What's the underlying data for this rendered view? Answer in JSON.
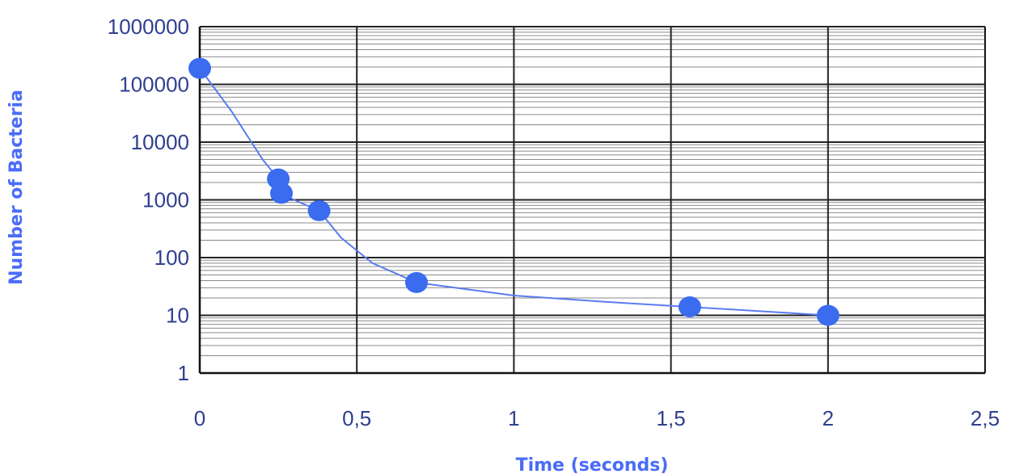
{
  "chart_data": {
    "type": "scatter",
    "title": "",
    "xlabel": "Time (seconds)",
    "ylabel": "Number of Bacteria",
    "xlim": [
      0,
      2.5
    ],
    "ylim": [
      1,
      1000000
    ],
    "yscale": "log",
    "grid": true,
    "x_ticks": [
      "0",
      "0,5",
      "1",
      "1,5",
      "2",
      "2,5"
    ],
    "y_ticks": [
      "1",
      "10",
      "100",
      "1000",
      "10000",
      "100000",
      "1000000"
    ],
    "series": [
      {
        "points": [
          {
            "x": 0.0,
            "y": 190000
          },
          {
            "x": 0.25,
            "y": 2300
          },
          {
            "x": 0.26,
            "y": 1300
          },
          {
            "x": 0.38,
            "y": 650
          },
          {
            "x": 0.69,
            "y": 37
          },
          {
            "x": 1.56,
            "y": 14
          },
          {
            "x": 2.0,
            "y": 10
          }
        ],
        "marker_color": "#3b6cf0",
        "line_color": "#5b7cf0"
      }
    ],
    "trend_curve": [
      {
        "x": 0.0,
        "y": 190000
      },
      {
        "x": 0.1,
        "y": 35000
      },
      {
        "x": 0.2,
        "y": 5000
      },
      {
        "x": 0.25,
        "y": 2300
      },
      {
        "x": 0.26,
        "y": 1300
      },
      {
        "x": 0.3,
        "y": 1000
      },
      {
        "x": 0.38,
        "y": 650
      },
      {
        "x": 0.45,
        "y": 220
      },
      {
        "x": 0.55,
        "y": 80
      },
      {
        "x": 0.69,
        "y": 37
      },
      {
        "x": 1.0,
        "y": 22
      },
      {
        "x": 1.3,
        "y": 17
      },
      {
        "x": 1.56,
        "y": 14
      },
      {
        "x": 2.0,
        "y": 10
      }
    ]
  }
}
